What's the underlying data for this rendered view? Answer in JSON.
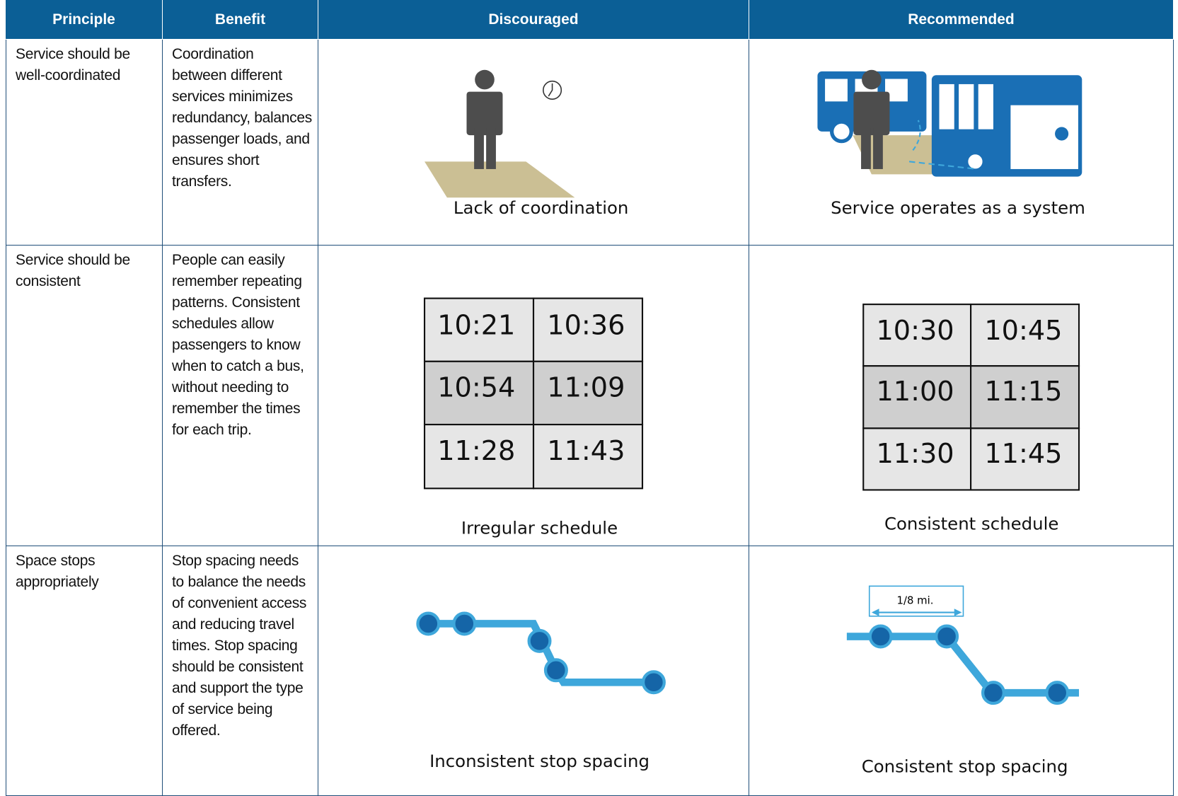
{
  "header": [
    "Principle",
    "Benefit",
    "Discouraged",
    "Recommended"
  ],
  "rows": [
    {
      "principle": "Service should be well-coordinated",
      "benefit": "Coordination between different services minimizes redundancy, balances passenger loads, and ensures short transfers.",
      "discouraged": {
        "caption": "Lack of coordination"
      },
      "recommended": {
        "caption": "Service operates as a system"
      }
    },
    {
      "principle": "Service should be consistent",
      "benefit": "People can easily remember repeating patterns. Consistent schedules allow passengers to know when to catch a bus, without needing to remember the times for each trip.",
      "discouraged": {
        "caption": "Irregular schedule",
        "times": [
          "10:21",
          "10:36",
          "10:54",
          "11:09",
          "11:28",
          "11:43"
        ]
      },
      "recommended": {
        "caption": "Consistent schedule",
        "times": [
          "10:30",
          "10:45",
          "11:00",
          "11:15",
          "11:30",
          "11:45"
        ]
      }
    },
    {
      "principle": "Space stops appropriately",
      "benefit": "Stop spacing needs to balance the needs of convenient access and reducing travel times. Stop spacing should be consistent and support the type of service being offered.",
      "discouraged": {
        "caption": "Inconsistent stop spacing"
      },
      "recommended": {
        "caption": "Consistent stop spacing",
        "label": "1/8 mi."
      }
    }
  ]
}
